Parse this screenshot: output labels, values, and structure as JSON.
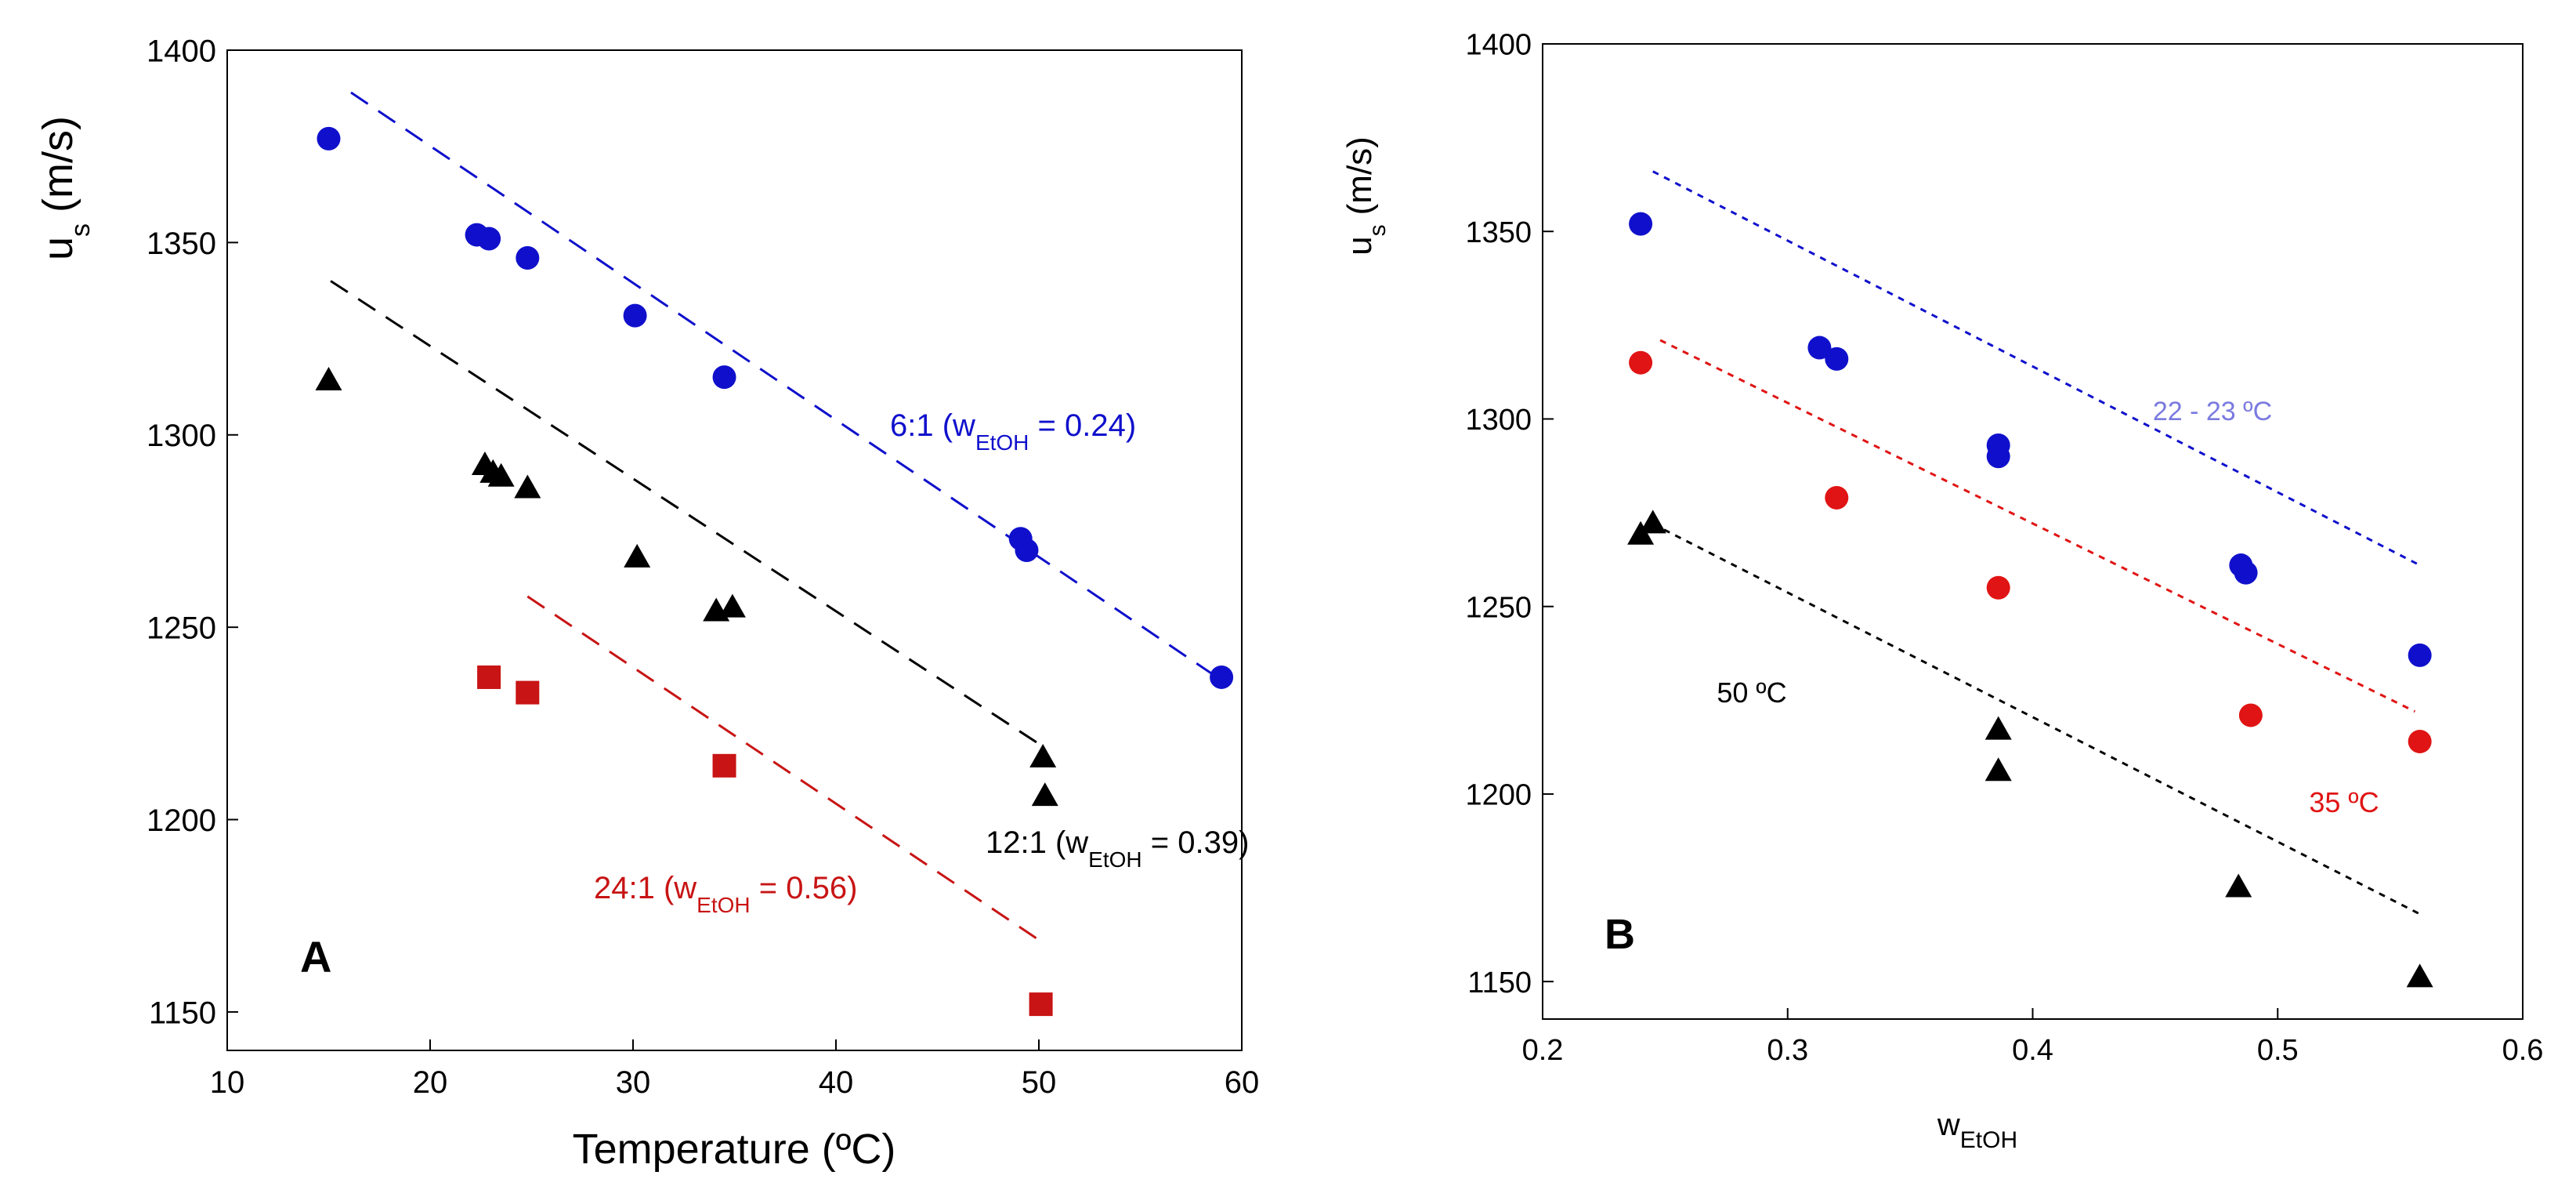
{
  "chart_data": [
    {
      "type": "scatter",
      "panel_label": "A",
      "xlabel": "Temperature (ºC)",
      "ylabel_main": "u",
      "ylabel_sub": "s",
      "ylabel_unit": "(m/s)",
      "xlim": [
        10,
        60
      ],
      "ylim": [
        1140,
        1400
      ],
      "xticks": [
        10,
        20,
        30,
        40,
        50,
        60
      ],
      "yticks": [
        1150,
        1200,
        1250,
        1300,
        1350,
        1400
      ],
      "series": [
        {
          "name": "6:1",
          "label_prefix": "6:1 (w",
          "label_sub": "EtOH",
          "label_suffix": " = 0.24)",
          "color": "#1010cc",
          "marker": "circle",
          "points": [
            [
              15,
              1377
            ],
            [
              22.3,
              1352
            ],
            [
              22.9,
              1351
            ],
            [
              24.8,
              1346
            ],
            [
              30.1,
              1331
            ],
            [
              34.5,
              1315
            ],
            [
              49.1,
              1273
            ],
            [
              49.4,
              1270
            ],
            [
              59,
              1237
            ]
          ],
          "fit": [
            [
              16.1,
              1389
            ],
            [
              58.5,
              1238
            ]
          ]
        },
        {
          "name": "12:1",
          "label_prefix": "12:1 (w",
          "label_sub": "EtOH",
          "label_suffix": " = 0.39)",
          "color": "#000000",
          "marker": "triangle",
          "points": [
            [
              15,
              1314
            ],
            [
              22.7,
              1292
            ],
            [
              23.1,
              1290
            ],
            [
              23.5,
              1289
            ],
            [
              24.8,
              1286
            ],
            [
              30.2,
              1268
            ],
            [
              34.1,
              1254
            ],
            [
              34.9,
              1255
            ],
            [
              50.2,
              1216
            ],
            [
              50.3,
              1206
            ]
          ],
          "fit": [
            [
              15.1,
              1340
            ],
            [
              50.2,
              1219
            ]
          ]
        },
        {
          "name": "24:1",
          "label_prefix": "24:1 (w",
          "label_sub": "EtOH",
          "label_suffix": " = 0.56)",
          "color": "#c81414",
          "marker": "square",
          "points": [
            [
              22.9,
              1237
            ],
            [
              24.8,
              1233
            ],
            [
              34.5,
              1214
            ],
            [
              50.1,
              1152
            ]
          ],
          "fit": [
            [
              24.8,
              1258
            ],
            [
              50.2,
              1168
            ]
          ]
        }
      ]
    },
    {
      "type": "scatter",
      "panel_label": "B",
      "xlabel_main": "w",
      "xlabel_sub": "EtOH",
      "ylabel_main": "u",
      "ylabel_sub": "s",
      "ylabel_unit": "(m/s)",
      "xlim": [
        0.2,
        0.6
      ],
      "ylim": [
        1140,
        1400
      ],
      "xticks": [
        "0.2",
        "0.3",
        "0.4",
        "0.5",
        "0.6"
      ],
      "yticks": [
        1150,
        1200,
        1250,
        1300,
        1350,
        1400
      ],
      "series": [
        {
          "name": "22 - 23 ºC",
          "color": "#1010cc",
          "label_color": "#7a7ae0",
          "marker": "circle",
          "points": [
            [
              0.24,
              1352
            ],
            [
              0.313,
              1319
            ],
            [
              0.32,
              1316
            ],
            [
              0.386,
              1293
            ],
            [
              0.386,
              1290
            ],
            [
              0.485,
              1261
            ],
            [
              0.487,
              1259
            ],
            [
              0.558,
              1237
            ]
          ],
          "fit": [
            [
              0.245,
              1366
            ],
            [
              0.558,
              1261
            ]
          ]
        },
        {
          "name": "35 ºC",
          "color": "#e01414",
          "label_color": "#e01414",
          "marker": "circle",
          "points": [
            [
              0.24,
              1315
            ],
            [
              0.32,
              1279
            ],
            [
              0.386,
              1255
            ],
            [
              0.489,
              1221
            ],
            [
              0.558,
              1214
            ]
          ],
          "fit": [
            [
              0.248,
              1321
            ],
            [
              0.556,
              1222
            ]
          ]
        },
        {
          "name": "50 ºC",
          "color": "#000000",
          "label_color": "#000000",
          "marker": "triangle",
          "points": [
            [
              0.24,
              1269
            ],
            [
              0.245,
              1272
            ],
            [
              0.386,
              1217
            ],
            [
              0.386,
              1206
            ],
            [
              0.484,
              1175
            ],
            [
              0.558,
              1151
            ]
          ],
          "fit": [
            [
              0.245,
              1272
            ],
            [
              0.558,
              1168
            ]
          ]
        }
      ]
    }
  ]
}
